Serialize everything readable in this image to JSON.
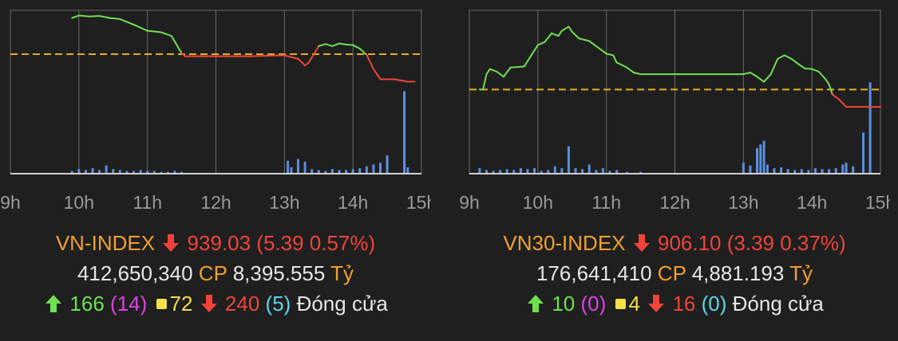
{
  "colors": {
    "background": "#1f1f1f",
    "grid": "#6b6b6b",
    "baseline": "#d0d0d0",
    "up": "#6fe050",
    "down": "#f0443a",
    "reference": "#e6b020",
    "volume": "#5b8fe0",
    "label_orange": "#f0a030"
  },
  "chart_data": [
    {
      "type": "line",
      "title": "",
      "x_ticks": [
        "9h",
        "10h",
        "11h",
        "12h",
        "13h",
        "14h",
        "15h"
      ],
      "reference_value": 944.42,
      "ylim": [
        921.0,
        953.0
      ],
      "price": {
        "x": [
          9.9,
          10.0,
          10.15,
          10.3,
          10.45,
          10.6,
          10.8,
          11.0,
          11.2,
          11.35,
          11.5,
          11.55,
          12.0,
          12.5,
          13.0,
          13.05,
          13.2,
          13.3,
          13.35,
          13.5,
          13.6,
          13.7,
          13.8,
          13.9,
          14.0,
          14.1,
          14.2,
          14.3,
          14.4,
          14.5,
          14.6,
          14.8,
          14.9
        ],
        "y": [
          951.5,
          952.0,
          951.8,
          951.9,
          951.5,
          951.3,
          950.2,
          949.0,
          948.7,
          948.0,
          944.6,
          944.0,
          944.0,
          944.0,
          944.2,
          944.0,
          943.5,
          942.2,
          942.7,
          946.0,
          946.4,
          946.0,
          946.5,
          946.3,
          946.2,
          945.5,
          944.3,
          941.5,
          939.5,
          939.5,
          939.5,
          939.03,
          939.03
        ]
      },
      "volume": {
        "x": [
          9.9,
          10.0,
          10.1,
          10.2,
          10.3,
          10.4,
          10.5,
          10.6,
          10.7,
          10.8,
          10.9,
          11.0,
          11.1,
          11.2,
          11.3,
          11.4,
          11.5,
          13.05,
          13.1,
          13.2,
          13.3,
          13.4,
          13.5,
          13.6,
          13.7,
          13.8,
          13.9,
          14.0,
          14.1,
          14.2,
          14.3,
          14.4,
          14.5,
          14.75,
          14.8
        ],
        "values": [
          3,
          5,
          4,
          6,
          4,
          9,
          5,
          4,
          3,
          3,
          4,
          3,
          3,
          2,
          2,
          3,
          2,
          14,
          7,
          16,
          13,
          5,
          4,
          3,
          5,
          4,
          4,
          5,
          6,
          8,
          10,
          12,
          20,
          90,
          7
        ]
      },
      "volume_max": 100
    },
    {
      "type": "line",
      "title": "",
      "x_ticks": [
        "9h",
        "10h",
        "11h",
        "12h",
        "13h",
        "14h",
        "15h"
      ],
      "reference_value": 909.49,
      "ylim": [
        893.0,
        925.0
      ],
      "price": {
        "x": [
          9.15,
          9.2,
          9.25,
          9.3,
          9.4,
          9.5,
          9.6,
          9.8,
          10.0,
          10.1,
          10.2,
          10.3,
          10.35,
          10.45,
          10.5,
          10.6,
          10.75,
          10.9,
          11.0,
          11.1,
          11.15,
          11.3,
          11.4,
          11.5,
          12.0,
          12.5,
          13.0,
          13.1,
          13.2,
          13.3,
          13.4,
          13.5,
          13.6,
          13.7,
          13.8,
          13.9,
          14.0,
          14.1,
          14.2,
          14.25,
          14.3,
          14.4,
          14.5,
          14.6,
          14.8,
          15.0
        ],
        "y": [
          909.5,
          909.5,
          912.5,
          913.5,
          913.0,
          912.0,
          913.8,
          914.0,
          918.2,
          918.8,
          920.5,
          920.0,
          921.0,
          921.8,
          920.8,
          919.5,
          919.0,
          917.5,
          916.5,
          916.2,
          914.8,
          913.8,
          912.8,
          912.5,
          912.5,
          912.5,
          912.5,
          912.8,
          912.0,
          911.0,
          912.5,
          915.5,
          916.2,
          915.5,
          914.5,
          913.6,
          913.5,
          913.0,
          911.5,
          910.5,
          908.5,
          907.5,
          906.1,
          906.1,
          906.1,
          906.1
        ]
      },
      "volume": {
        "x": [
          9.15,
          9.25,
          9.35,
          9.45,
          9.55,
          9.65,
          9.75,
          9.85,
          9.95,
          10.05,
          10.15,
          10.25,
          10.35,
          10.45,
          10.55,
          10.65,
          10.75,
          10.85,
          10.95,
          11.05,
          11.15,
          11.3,
          11.5,
          13.0,
          13.1,
          13.2,
          13.25,
          13.3,
          13.35,
          13.45,
          13.55,
          13.65,
          13.75,
          13.85,
          13.95,
          14.05,
          14.15,
          14.25,
          14.35,
          14.45,
          14.5,
          14.6,
          14.75,
          14.85
        ],
        "values": [
          6,
          4,
          3,
          4,
          5,
          4,
          6,
          5,
          6,
          3,
          4,
          8,
          6,
          30,
          6,
          5,
          10,
          4,
          6,
          3,
          4,
          2,
          2,
          12,
          9,
          28,
          32,
          36,
          10,
          6,
          7,
          5,
          4,
          5,
          4,
          6,
          5,
          5,
          6,
          10,
          12,
          8,
          45,
          100
        ]
      },
      "volume_max": 100
    }
  ],
  "panels": [
    {
      "index_name": "VN-INDEX",
      "value": "939.03",
      "change": "(5.39 0.57%)",
      "volume": "412,650,340",
      "cp_label": "CP",
      "turnover": "8,395.555",
      "turnover_unit": "Tỷ",
      "advances": "166",
      "ceiling": "(14)",
      "unchanged": "72",
      "declines": "240",
      "floor": "(5)",
      "status": "Đóng cửa",
      "direction_icon": "arrow-down-icon"
    },
    {
      "index_name": "VN30-INDEX",
      "value": "906.10",
      "change": "(3.39 0.37%)",
      "volume": "176,641,410",
      "cp_label": "CP",
      "turnover": "4,881.193",
      "turnover_unit": "Tỷ",
      "advances": "10",
      "ceiling": "(0)",
      "unchanged": "4",
      "declines": "16",
      "floor": "(0)",
      "status": "Đóng cửa",
      "direction_icon": "arrow-down-icon"
    }
  ]
}
